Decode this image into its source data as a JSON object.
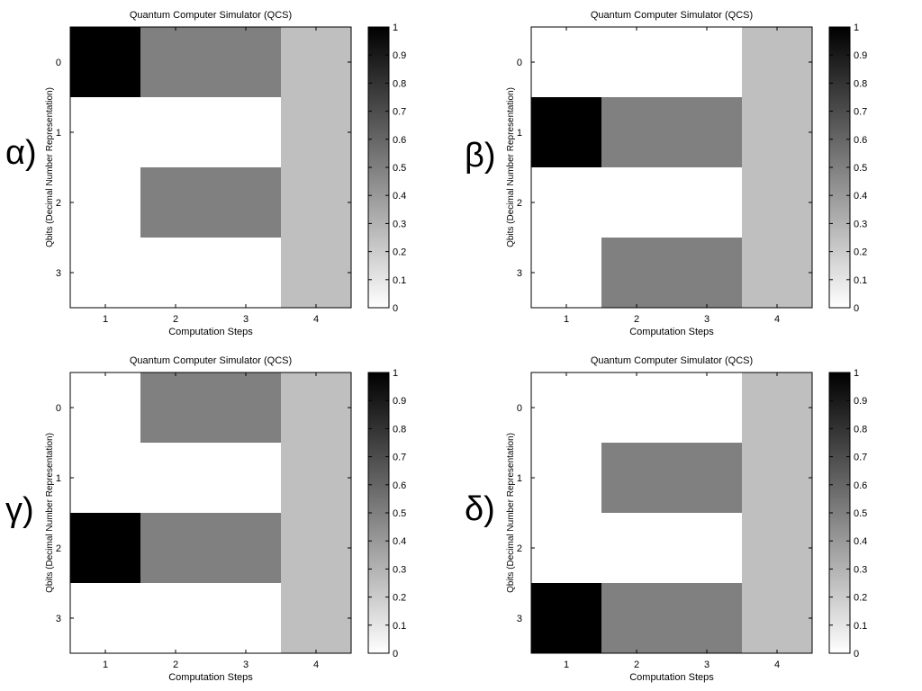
{
  "panel_labels": [
    "α)",
    "β)",
    "γ)",
    "δ)"
  ],
  "colorbar": {
    "min": 0,
    "max": 1,
    "tick_labels": [
      "0",
      "0.1",
      "0.2",
      "0.3",
      "0.4",
      "0.5",
      "0.6",
      "0.7",
      "0.8",
      "0.9",
      "1"
    ],
    "colormap": "gray-reversed",
    "low_color": "#ffffff",
    "high_color": "#000000"
  },
  "chart_data": [
    {
      "type": "heatmap",
      "title": "Quantum Computer Simulator (QCS)",
      "xlabel": "Computation Steps",
      "ylabel": "Qbits (Decimal Number Representation)",
      "x": [
        "1",
        "2",
        "3",
        "4"
      ],
      "y": [
        "0",
        "1",
        "2",
        "3"
      ],
      "values": [
        [
          1,
          0.5,
          0.5,
          0.25
        ],
        [
          0,
          0,
          0,
          0.25
        ],
        [
          0,
          0.5,
          0.5,
          0.25
        ],
        [
          0,
          0,
          0,
          0.25
        ]
      ]
    },
    {
      "type": "heatmap",
      "title": "Quantum Computer Simulator (QCS)",
      "xlabel": "Computation Steps",
      "ylabel": "Qbits (Decimal Number Representation)",
      "x": [
        "1",
        "2",
        "3",
        "4"
      ],
      "y": [
        "0",
        "1",
        "2",
        "3"
      ],
      "values": [
        [
          0,
          0,
          0,
          0.25
        ],
        [
          1,
          0.5,
          0.5,
          0.25
        ],
        [
          0,
          0,
          0,
          0.25
        ],
        [
          0,
          0.5,
          0.5,
          0.25
        ]
      ]
    },
    {
      "type": "heatmap",
      "title": "Quantum Computer Simulator (QCS)",
      "xlabel": "Computation Steps",
      "ylabel": "Qbits (Decimal Number Representation)",
      "x": [
        "1",
        "2",
        "3",
        "4"
      ],
      "y": [
        "0",
        "1",
        "2",
        "3"
      ],
      "values": [
        [
          0,
          0.5,
          0.5,
          0.25
        ],
        [
          0,
          0,
          0,
          0.25
        ],
        [
          1,
          0.5,
          0.5,
          0.25
        ],
        [
          0,
          0,
          0,
          0.25
        ]
      ]
    },
    {
      "type": "heatmap",
      "title": "Quantum Computer Simulator (QCS)",
      "xlabel": "Computation Steps",
      "ylabel": "Qbits (Decimal Number Representation)",
      "x": [
        "1",
        "2",
        "3",
        "4"
      ],
      "y": [
        "0",
        "1",
        "2",
        "3"
      ],
      "values": [
        [
          0,
          0,
          0,
          0.25
        ],
        [
          0,
          0.5,
          0.5,
          0.25
        ],
        [
          0,
          0,
          0,
          0.25
        ],
        [
          1,
          0.5,
          0.5,
          0.25
        ]
      ]
    }
  ]
}
